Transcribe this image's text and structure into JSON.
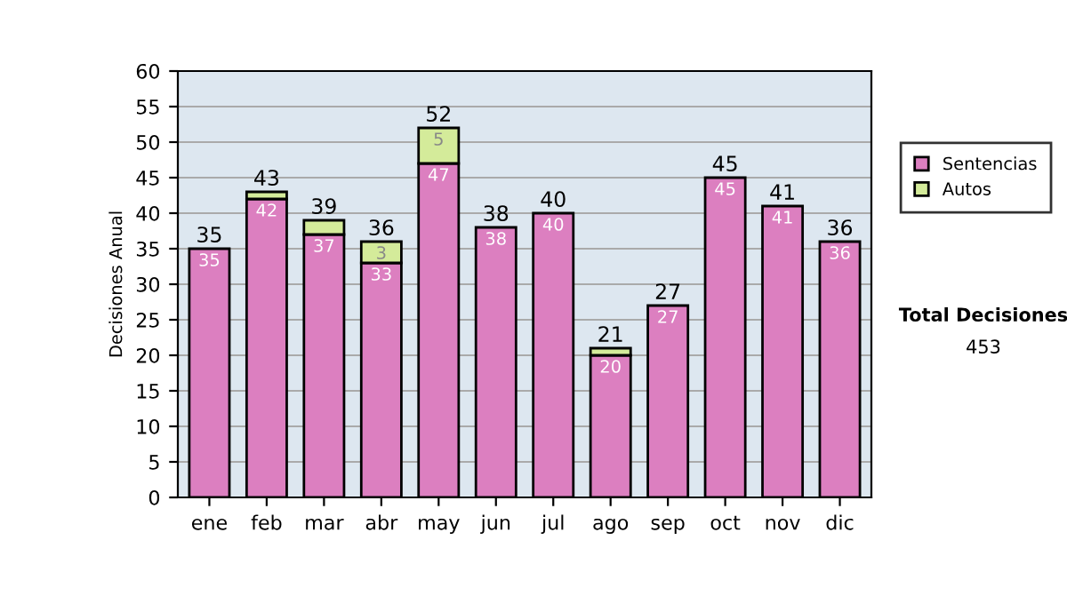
{
  "chart_data": {
    "type": "bar",
    "ylabel": "Decisiones Anual",
    "categories": [
      "ene",
      "feb",
      "mar",
      "abr",
      "may",
      "jun",
      "jul",
      "ago",
      "sep",
      "oct",
      "nov",
      "dic"
    ],
    "stacked": true,
    "series": [
      {
        "name": "Sentencias",
        "color": "#dc7fc0",
        "values": [
          35,
          42,
          37,
          33,
          47,
          38,
          40,
          20,
          27,
          45,
          41,
          36
        ],
        "value_labels": [
          "35",
          "42",
          "37",
          "33",
          "47",
          "38",
          "40",
          "20",
          "27",
          "45",
          "41",
          "36"
        ]
      },
      {
        "name": "Autos",
        "color": "#d4eb9a",
        "values": [
          null,
          1,
          2,
          3,
          5,
          null,
          null,
          1,
          null,
          null,
          null,
          null
        ],
        "value_labels": [
          null,
          null,
          null,
          "3",
          "5",
          null,
          null,
          null,
          null,
          null,
          null,
          null
        ]
      }
    ],
    "totals": [
      "35",
      "43",
      "39",
      "36",
      "52",
      "38",
      "40",
      "21",
      "27",
      "45",
      "41",
      "36"
    ],
    "ylim": [
      0,
      60
    ],
    "yticks": [
      0,
      5,
      10,
      15,
      20,
      25,
      30,
      35,
      40,
      45,
      50,
      55,
      60
    ],
    "grid": "y",
    "legend": "right",
    "annotations": [
      "Total Decisiones",
      "453"
    ]
  }
}
